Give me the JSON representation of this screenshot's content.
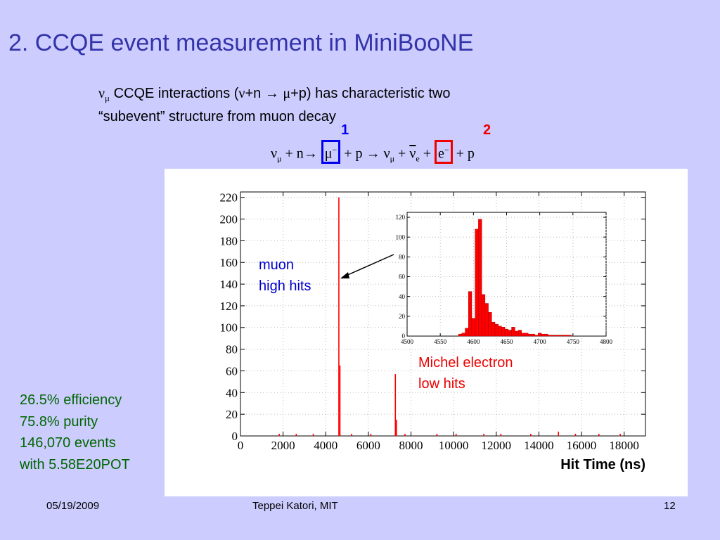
{
  "slide": {
    "title": "2. CCQE event measurement in MiniBooNE",
    "intro": {
      "nu": "ν",
      "mu": "μ",
      "line1_a": " CCQE interactions (",
      "line1_b": "+n ",
      "arrow": "→",
      "line1_c": "+p) has characteristic  two",
      "line2": "“subevent” structure from muon decay"
    },
    "equation": {
      "nu": "ν",
      "mu": "μ",
      "plus_n": " + n",
      "arrow": "→",
      "muon": "μ",
      "minus": "−",
      "plus_p": " + p ",
      "plus": " + ",
      "e_sub": "e",
      "electron": "e",
      "plus_p2": "+ p",
      "label1": "1",
      "label2": "2"
    },
    "annotations": {
      "muon_line1": "muon",
      "muon_line2": "high hits",
      "michel_line1": "Michel electron",
      "michel_line2": "low hits"
    },
    "stats": [
      "26.5% efficiency",
      "75.8% purity",
      "146,070 events",
      "with 5.58E20POT"
    ],
    "footer": {
      "date": "05/19/2009",
      "author": "Teppei Katori, MIT",
      "page": "12"
    },
    "colors": {
      "background": "#ccccff",
      "title": "#3333aa",
      "stats": "#006600",
      "histogram": "#ff0000",
      "box1": "#0000ee",
      "box2": "#ee0000"
    }
  },
  "chart_data": [
    {
      "type": "bar",
      "title": "",
      "xlabel": "Hit Time (ns)",
      "ylabel": "",
      "xlim": [
        0,
        19000
      ],
      "ylim": [
        0,
        225
      ],
      "xticks": [
        0,
        2000,
        4000,
        6000,
        8000,
        10000,
        12000,
        14000,
        16000,
        18000
      ],
      "yticks": [
        0,
        20,
        40,
        60,
        80,
        100,
        120,
        140,
        160,
        180,
        200,
        220
      ],
      "series": [
        {
          "x": [
            4600,
            4650,
            7250,
            7300
          ],
          "values": [
            220,
            65,
            57,
            15
          ]
        },
        {
          "x": [
            1800,
            2600,
            3400,
            5200,
            6100,
            7700,
            9200,
            10100,
            11400,
            12200,
            13600,
            14900,
            15700,
            16800,
            17800
          ],
          "values": [
            2,
            2,
            2,
            2,
            2,
            2,
            2,
            2,
            2,
            2,
            2,
            4,
            2,
            2,
            2
          ]
        }
      ]
    },
    {
      "type": "bar",
      "title": "",
      "xlabel": "",
      "ylabel": "",
      "xlim": [
        4500,
        4800
      ],
      "ylim": [
        0,
        125
      ],
      "xticks": [
        4500,
        4550,
        4600,
        4650,
        4700,
        4750,
        4800
      ],
      "yticks": [
        0,
        20,
        40,
        60,
        80,
        100,
        120
      ],
      "series": [
        {
          "x": [
            4580,
            4585,
            4590,
            4595,
            4600,
            4605,
            4610,
            4615,
            4620,
            4625,
            4630,
            4635,
            4640,
            4645,
            4650,
            4655,
            4660,
            4665,
            4670,
            4675,
            4680,
            4685,
            4690,
            4695,
            4700,
            4705,
            4710,
            4715,
            4720,
            4725,
            4730,
            4735,
            4740,
            4745
          ],
          "values": [
            2,
            3,
            8,
            45,
            18,
            108,
            118,
            42,
            33,
            24,
            14,
            12,
            10,
            9,
            7,
            6,
            9,
            5,
            6,
            3,
            3,
            2,
            2,
            1,
            3,
            2,
            2,
            1,
            1,
            1,
            1,
            1,
            1,
            1
          ]
        }
      ]
    }
  ]
}
